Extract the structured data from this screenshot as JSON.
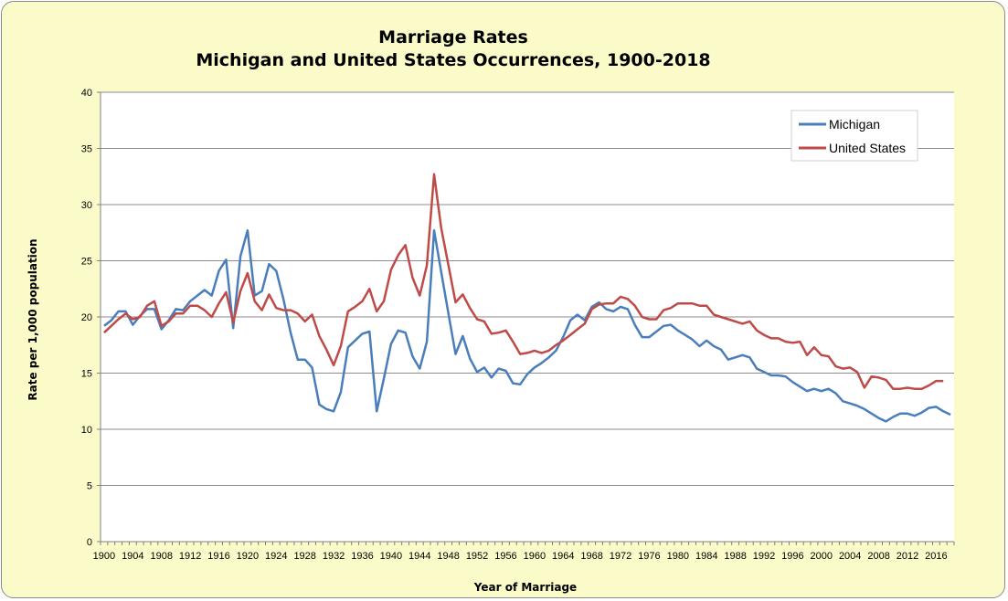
{
  "chart_data": {
    "type": "line",
    "title": "Marriage Rates",
    "subtitle": "Michigan and United States Occurrences, 1900-2018",
    "xlabel": "Year of Marriage",
    "ylabel": "Rate per 1,000 population",
    "xlim": [
      1900,
      2018
    ],
    "ylim": [
      0,
      40
    ],
    "yticks": [
      "0",
      "5",
      "10",
      "15",
      "20",
      "25",
      "30",
      "35",
      "40"
    ],
    "xticks": [
      "1900",
      "1904",
      "1908",
      "1912",
      "1916",
      "1920",
      "1924",
      "1928",
      "1932",
      "1936",
      "1940",
      "1944",
      "1948",
      "1952",
      "1956",
      "1960",
      "1964",
      "1968",
      "1972",
      "1976",
      "1980",
      "1984",
      "1988",
      "1992",
      "1996",
      "2000",
      "2004",
      "2008",
      "2012",
      "2016"
    ],
    "grid": "horizontal",
    "legend_position": "top-right",
    "colors": {
      "Michigan": "#4a7ebb",
      "United States": "#be4b48"
    },
    "series": [
      {
        "name": "Michigan",
        "x": [
          1900,
          1901,
          1902,
          1903,
          1904,
          1905,
          1906,
          1907,
          1908,
          1909,
          1910,
          1911,
          1912,
          1913,
          1914,
          1915,
          1916,
          1917,
          1918,
          1919,
          1920,
          1921,
          1922,
          1923,
          1924,
          1925,
          1926,
          1927,
          1928,
          1929,
          1930,
          1931,
          1932,
          1933,
          1934,
          1935,
          1936,
          1937,
          1938,
          1939,
          1940,
          1941,
          1942,
          1943,
          1944,
          1945,
          1946,
          1947,
          1948,
          1949,
          1950,
          1951,
          1952,
          1953,
          1954,
          1955,
          1956,
          1957,
          1958,
          1959,
          1960,
          1961,
          1962,
          1963,
          1964,
          1965,
          1966,
          1967,
          1968,
          1969,
          1970,
          1971,
          1972,
          1973,
          1974,
          1975,
          1976,
          1977,
          1978,
          1979,
          1980,
          1981,
          1982,
          1983,
          1984,
          1985,
          1986,
          1987,
          1988,
          1989,
          1990,
          1991,
          1992,
          1993,
          1994,
          1995,
          1996,
          1997,
          1998,
          1999,
          2000,
          2001,
          2002,
          2003,
          2004,
          2005,
          2006,
          2007,
          2008,
          2009,
          2010,
          2011,
          2012,
          2013,
          2014,
          2015,
          2016,
          2017,
          2018
        ],
        "values": [
          19.2,
          19.7,
          20.5,
          20.5,
          19.3,
          20.1,
          20.7,
          20.7,
          18.9,
          19.7,
          20.7,
          20.6,
          21.4,
          21.9,
          22.4,
          21.9,
          24.1,
          25.1,
          19.0,
          25.4,
          27.7,
          21.9,
          22.3,
          24.7,
          24.1,
          21.6,
          18.6,
          16.2,
          16.2,
          15.5,
          12.2,
          11.8,
          11.6,
          13.3,
          17.3,
          17.9,
          18.5,
          18.7,
          11.6,
          14.5,
          17.6,
          18.8,
          18.6,
          16.5,
          15.4,
          17.8,
          27.7,
          24.0,
          20.3,
          16.7,
          18.3,
          16.3,
          15.1,
          15.5,
          14.6,
          15.4,
          15.2,
          14.1,
          14.0,
          14.9,
          15.5,
          15.9,
          16.4,
          17.0,
          18.2,
          19.7,
          20.2,
          19.7,
          20.9,
          21.3,
          20.7,
          20.5,
          20.9,
          20.7,
          19.3,
          18.2,
          18.2,
          18.7,
          19.2,
          19.3,
          18.8,
          18.4,
          18.0,
          17.4,
          17.9,
          17.4,
          17.1,
          16.2,
          16.4,
          16.6,
          16.4,
          15.4,
          15.1,
          14.8,
          14.8,
          14.7,
          14.2,
          13.8,
          13.4,
          13.6,
          13.4,
          13.6,
          13.2,
          12.5,
          12.3,
          12.1,
          11.8,
          11.4,
          11.0,
          10.7,
          11.1,
          11.4,
          11.4,
          11.2,
          11.5,
          11.9,
          12.0,
          11.6,
          11.3
        ]
      },
      {
        "name": "United States",
        "x": [
          1900,
          1901,
          1902,
          1903,
          1904,
          1905,
          1906,
          1907,
          1908,
          1909,
          1910,
          1911,
          1912,
          1913,
          1914,
          1915,
          1916,
          1917,
          1918,
          1919,
          1920,
          1921,
          1922,
          1923,
          1924,
          1925,
          1926,
          1927,
          1928,
          1929,
          1930,
          1931,
          1932,
          1933,
          1934,
          1935,
          1936,
          1937,
          1938,
          1939,
          1940,
          1941,
          1942,
          1943,
          1944,
          1945,
          1946,
          1947,
          1948,
          1949,
          1950,
          1951,
          1952,
          1953,
          1954,
          1955,
          1956,
          1957,
          1958,
          1959,
          1960,
          1961,
          1962,
          1963,
          1964,
          1965,
          1966,
          1967,
          1968,
          1969,
          1970,
          1971,
          1972,
          1973,
          1974,
          1975,
          1976,
          1977,
          1978,
          1979,
          1980,
          1981,
          1982,
          1983,
          1984,
          1985,
          1986,
          1987,
          1988,
          1989,
          1990,
          1991,
          1992,
          1993,
          1994,
          1995,
          1996,
          1997,
          1998,
          1999,
          2000,
          2001,
          2002,
          2003,
          2004,
          2005,
          2006,
          2007,
          2008,
          2009,
          2010,
          2011,
          2012,
          2013,
          2014,
          2015,
          2016,
          2017,
          2018
        ],
        "values": [
          18.6,
          19.2,
          19.8,
          20.3,
          19.8,
          20.0,
          21.0,
          21.4,
          19.2,
          19.6,
          20.3,
          20.3,
          21.0,
          21.0,
          20.6,
          20.0,
          21.2,
          22.2,
          19.5,
          22.3,
          23.9,
          21.4,
          20.6,
          22.0,
          20.8,
          20.6,
          20.6,
          20.3,
          19.6,
          20.2,
          18.3,
          17.1,
          15.7,
          17.4,
          20.5,
          20.9,
          21.4,
          22.5,
          20.5,
          21.4,
          24.2,
          25.5,
          26.4,
          23.5,
          21.9,
          24.6,
          32.7,
          27.9,
          24.6,
          21.3,
          22.0,
          20.8,
          19.8,
          19.6,
          18.5,
          18.6,
          18.8,
          17.8,
          16.7,
          16.8,
          17.0,
          16.8,
          17.0,
          17.5,
          17.9,
          18.4,
          18.9,
          19.4,
          20.7,
          21.1,
          21.2,
          21.2,
          21.8,
          21.6,
          21.0,
          20.0,
          19.8,
          19.8,
          20.6,
          20.8,
          21.2,
          21.2,
          21.2,
          21.0,
          21.0,
          20.2,
          20.0,
          19.8,
          19.6,
          19.4,
          19.6,
          18.8,
          18.4,
          18.1,
          18.1,
          17.8,
          17.7,
          17.8,
          16.6,
          17.3,
          16.6,
          16.5,
          15.6,
          15.4,
          15.5,
          15.1,
          13.7,
          14.7,
          14.6,
          14.4,
          13.6,
          13.6,
          13.7,
          13.6,
          13.6,
          13.9,
          14.3,
          14.3,
          null
        ]
      }
    ]
  }
}
